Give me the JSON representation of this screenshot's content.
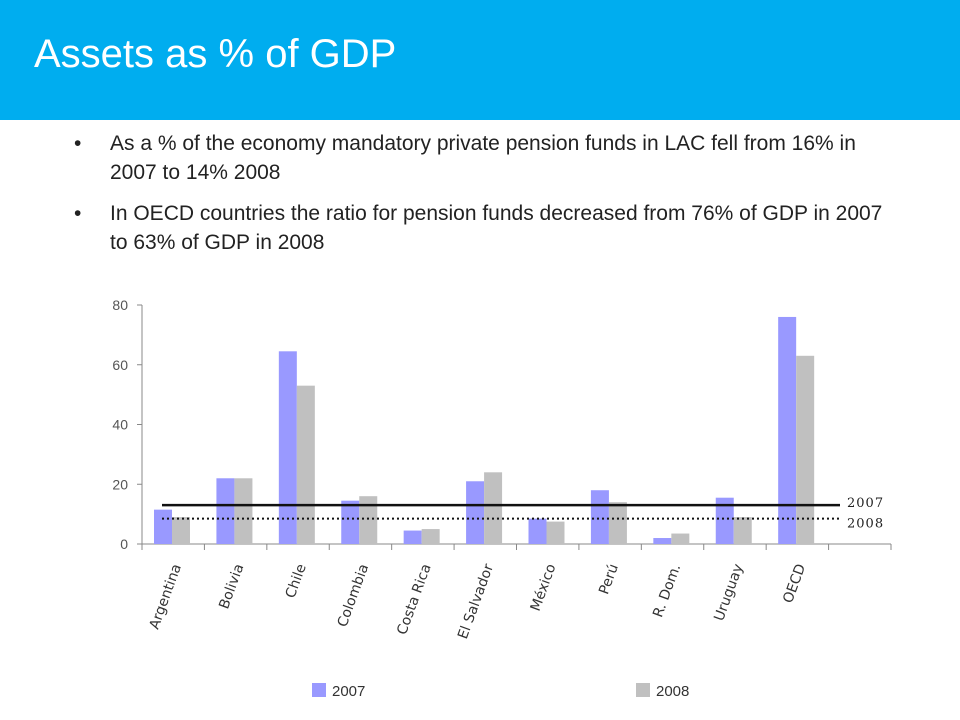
{
  "slide": {
    "title": "Assets as % of GDP",
    "bullets": [
      "As a % of the economy mandatory private pension funds in LAC fell from 16% in 2007 to 14% 2008",
      "In OECD countries the ratio for pension funds decreased from 76% of GDP in 2007 to 63% of GDP in 2008"
    ]
  },
  "colors": {
    "header": "#00adef",
    "series_2007": "#9999ff",
    "series_2008": "#c0c0c0"
  },
  "chart_data": {
    "type": "bar",
    "categories": [
      "Argentina",
      "Bolivia",
      "Chile",
      "Colombia",
      "Costa Rica",
      "El Salvador",
      "México",
      "Perú",
      "R. Dom.",
      "Uruguay",
      "OECD"
    ],
    "series": [
      {
        "name": "2007",
        "values": [
          11.5,
          22,
          64.5,
          14.5,
          4.5,
          21,
          8.5,
          18,
          2,
          15.5,
          76
        ]
      },
      {
        "name": "2008",
        "values": [
          9,
          22,
          53,
          16,
          5,
          24,
          7.5,
          14,
          3.5,
          9,
          63
        ]
      }
    ],
    "reference_lines": [
      {
        "label": "2007",
        "value": 13,
        "style": "solid"
      },
      {
        "label": "2008",
        "value": 8.5,
        "style": "dotted"
      }
    ],
    "yticks": [
      0,
      20,
      40,
      60,
      80
    ],
    "ylim": [
      0,
      80
    ],
    "legend_position": "bottom",
    "grid": false
  }
}
